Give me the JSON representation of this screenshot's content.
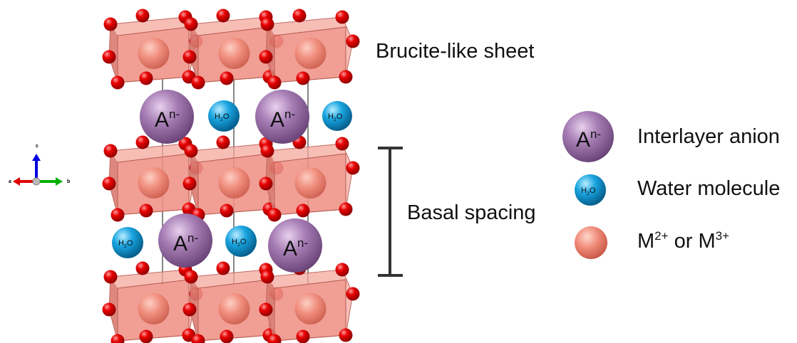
{
  "labels": {
    "brucite_sheet": "Brucite-like sheet",
    "basal_spacing": "Basal spacing"
  },
  "legend": {
    "anion_label": "Interlayer anion",
    "water_label": "Water molecule",
    "metal_prefix": "M",
    "metal_charge_2": "2+",
    "metal_or": " or M",
    "metal_charge_3": "3+"
  },
  "atom_labels": {
    "anion_symbol": "A",
    "anion_charge": "n-",
    "water_formula": "H",
    "water_sub": "2",
    "water_o": "O"
  },
  "axes": {
    "a": "a",
    "b": "b",
    "c": "c"
  },
  "colors": {
    "octahedron": "#f08c80",
    "metal": "#e87a6a",
    "oxygen": "#e00000",
    "anion": "#9a6ea6",
    "water": "#1aa6e0",
    "axis_a": "#e00000",
    "axis_b": "#00b000",
    "axis_c": "#0000e0"
  }
}
